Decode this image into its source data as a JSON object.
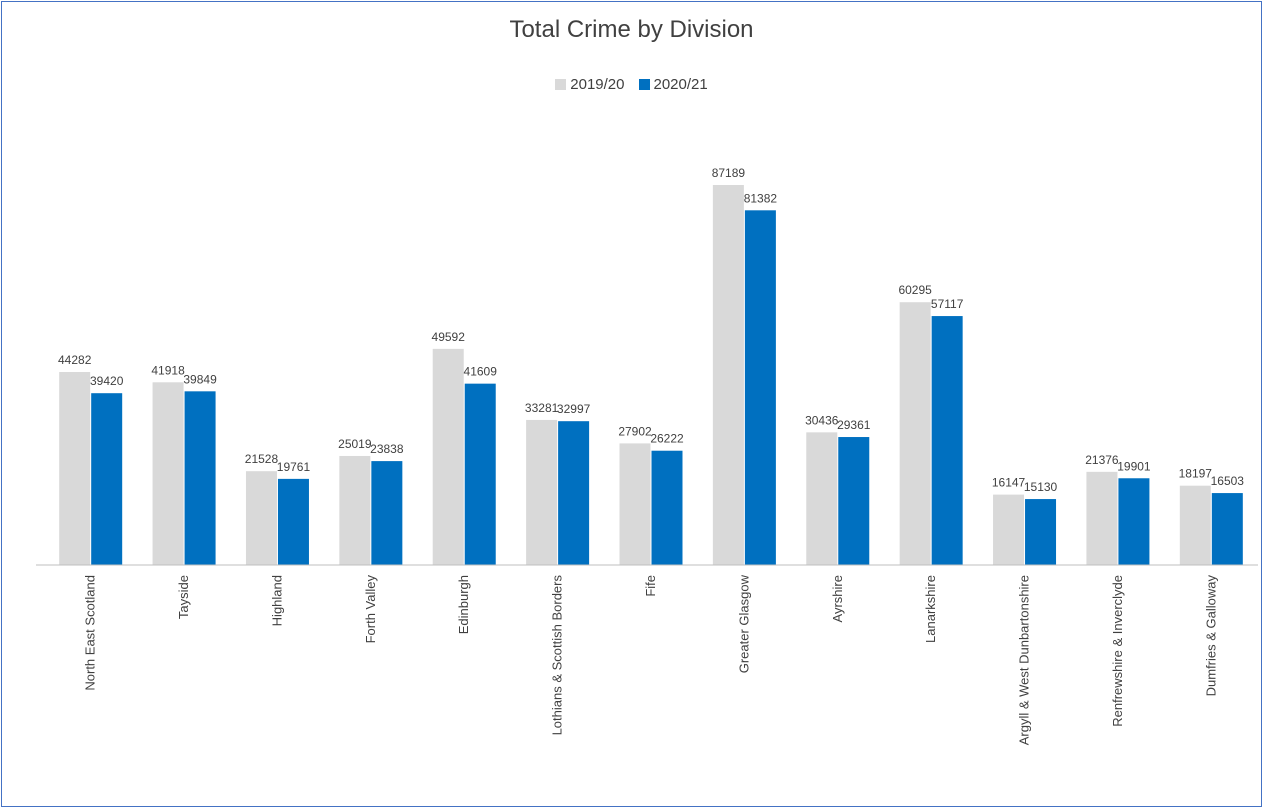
{
  "chart_data": {
    "type": "bar",
    "title": "Total Crime by Division",
    "xlabel": "",
    "ylabel": "",
    "categories": [
      "North East Scotland",
      "Tayside",
      "Highland",
      "Forth Valley",
      "Edinburgh",
      "Lothians & Scottish Borders",
      "Fife",
      "Greater Glasgow",
      "Ayrshire",
      "Lanarkshire",
      "Argyll & West Dunbartonshire",
      "Renfrewshire & Inverclyde",
      "Dumfries & Galloway"
    ],
    "series": [
      {
        "name": "2019/20",
        "color": "#d9d9d9",
        "values": [
          44282,
          41918,
          21528,
          25019,
          49592,
          33281,
          27902,
          87189,
          30436,
          60295,
          16147,
          21376,
          18197
        ]
      },
      {
        "name": "2020/21",
        "color": "#0070c0",
        "values": [
          39420,
          39849,
          19761,
          23838,
          41609,
          32997,
          26222,
          81382,
          29361,
          57117,
          15130,
          19901,
          16503
        ]
      }
    ],
    "ylim": [
      0,
      87189
    ],
    "grid": false,
    "legend_position": "top-center",
    "data_labels": true
  }
}
